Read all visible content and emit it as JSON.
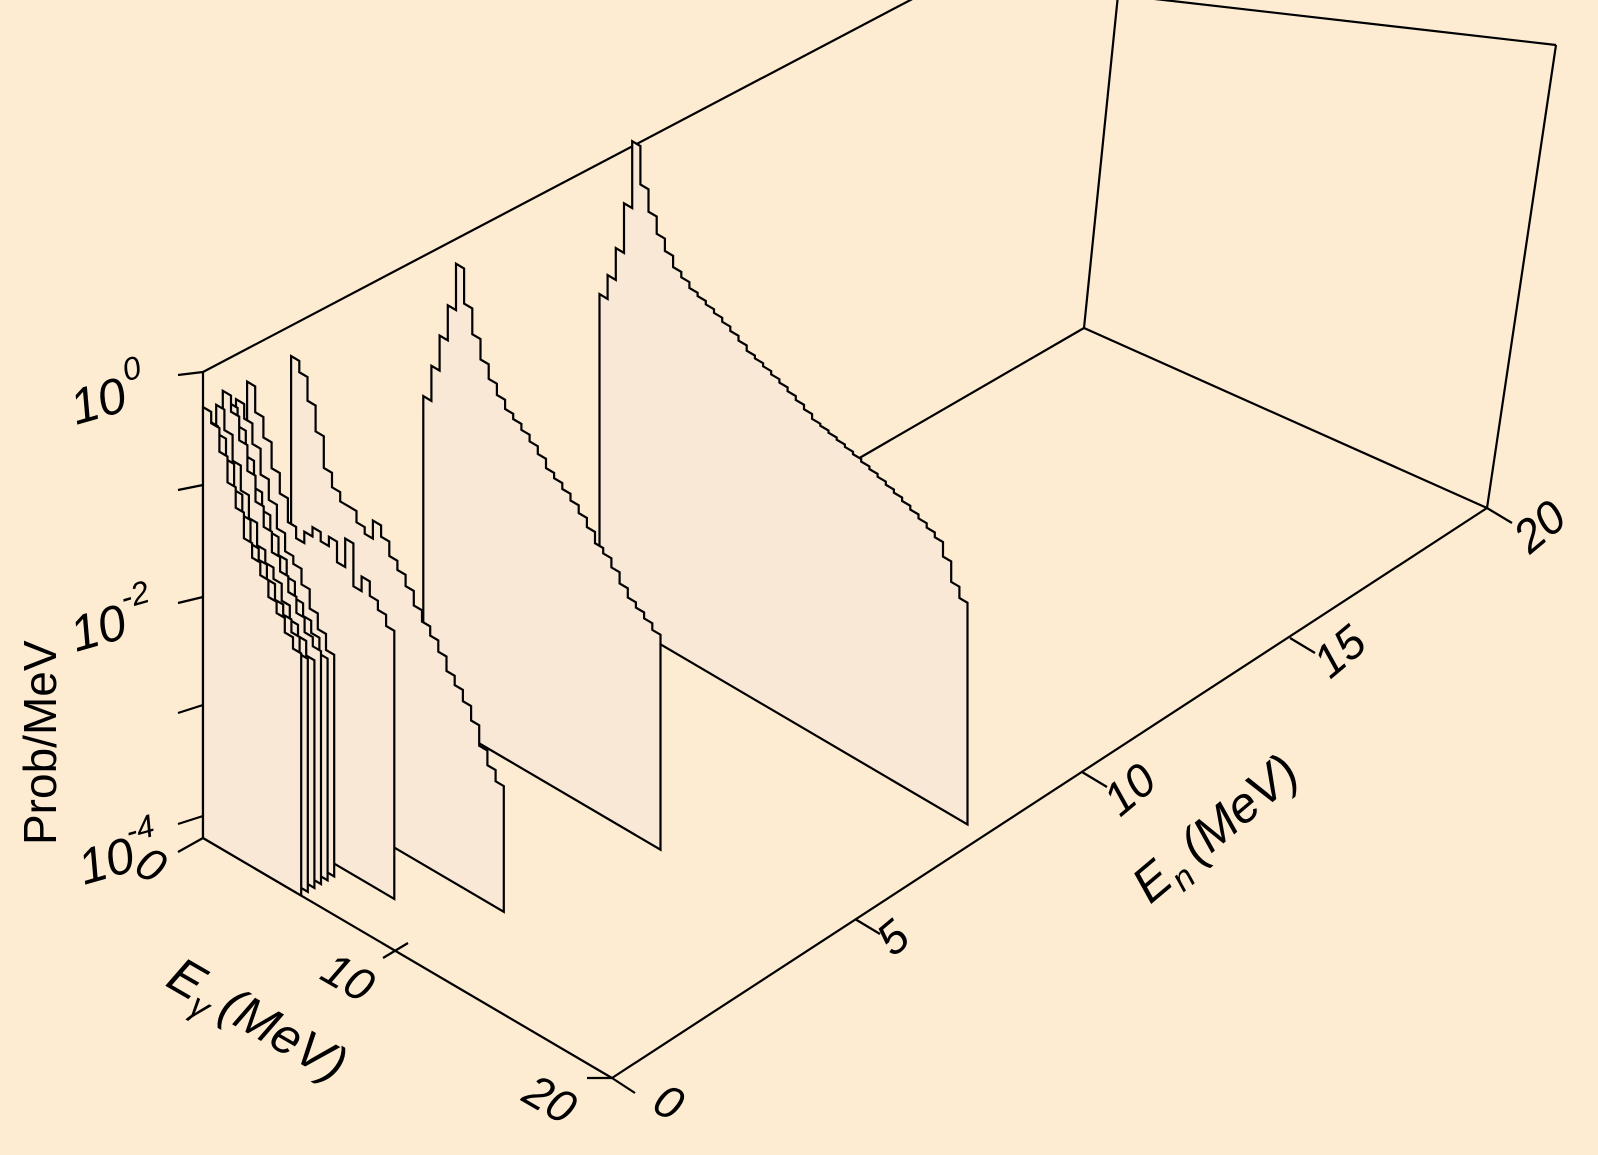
{
  "chart_data": {
    "type": "3d-step-histogram",
    "ylabel": "Prob/MeV",
    "xlabel_main": "E",
    "xlabel_sub": "γ",
    "xlabel_unit": "(MeV)",
    "zlabel_main": "E",
    "zlabel_sub": "n",
    "zlabel_unit": "(MeV)",
    "y_scale": "log",
    "ylim": [
      0.0001,
      1
    ],
    "xlim": [
      0,
      20
    ],
    "zlim": [
      0,
      20
    ],
    "ytick_labels": [
      {
        "base": "10",
        "exp": "0",
        "value": 1
      },
      {
        "base": "10",
        "exp": "-2",
        "value": 0.01
      },
      {
        "base": "10",
        "exp": "-4",
        "value": 0.0001
      }
    ],
    "xtick_labels": [
      "0",
      "10",
      "20"
    ],
    "ztick_labels": [
      "0",
      "5",
      "10",
      "15",
      "20"
    ],
    "series": [
      {
        "en": 0.0,
        "values": [
          0.5,
          0.4,
          0.25,
          0.15,
          0.1,
          0.06,
          0.045,
          0.035,
          0.025,
          0.02,
          0.015,
          0.012
        ]
      },
      {
        "en": 0.15,
        "values": [
          0.35,
          0.3,
          0.2,
          0.12,
          0.08,
          0.05,
          0.04,
          0.03,
          0.022,
          0.018,
          0.014,
          0.01
        ]
      },
      {
        "en": 0.3,
        "values": [
          0.45,
          0.3,
          0.18,
          0.11,
          0.07,
          0.045,
          0.035,
          0.028,
          0.02,
          0.015,
          0.012,
          0.009
        ]
      },
      {
        "en": 0.45,
        "values": [
          0.55,
          0.4,
          0.25,
          0.15,
          0.09,
          0.06,
          0.04,
          0.03,
          0.022,
          0.016,
          0.012,
          0.01
        ]
      },
      {
        "en": 0.6,
        "values": [
          0.4,
          0.28,
          0.17,
          0.1,
          0.07,
          0.05,
          0.035,
          0.025,
          0.018,
          0.014,
          0.011,
          0.008
        ]
      },
      {
        "en": 0.75,
        "values": [
          0.4,
          0.3,
          0.2,
          0.12,
          0.08,
          0.05,
          0.035,
          0.03,
          0.022,
          0.015,
          0.011,
          0.008
        ]
      },
      {
        "en": 1.0,
        "values": [
          0.5,
          0.3,
          0.2,
          0.12,
          0.08,
          0.05,
          0.04,
          0.05,
          0.06,
          0.05,
          0.06,
          0.04,
          0.07,
          0.03,
          0.04,
          0.03,
          0.025,
          0.02
        ]
      },
      {
        "en": 2.0,
        "values": [
          0.5,
          0.4,
          0.25,
          0.15,
          0.08,
          0.06,
          0.05,
          0.05,
          0.04,
          0.035,
          0.05,
          0.04,
          0.03,
          0.025,
          0.02,
          0.015,
          0.012,
          0.01,
          0.008,
          0.006,
          0.005,
          0.004,
          0.003,
          0.002,
          0.0015,
          0.0012
        ]
      },
      {
        "en": 5.0,
        "values": [
          0.05,
          0.1,
          0.2,
          0.4,
          1.0,
          0.5,
          0.3,
          0.2,
          0.15,
          0.12,
          0.1,
          0.09,
          0.08,
          0.07,
          0.06,
          0.05,
          0.045,
          0.04,
          0.035,
          0.03,
          0.025,
          0.02,
          0.018,
          0.015,
          0.012,
          0.01,
          0.009,
          0.008,
          0.007
        ]
      },
      {
        "en": 9.0,
        "values": [
          0.05,
          0.08,
          0.15,
          0.4,
          1.5,
          0.7,
          0.45,
          0.32,
          0.25,
          0.2,
          0.18,
          0.16,
          0.15,
          0.14,
          0.13,
          0.12,
          0.11,
          0.1,
          0.09,
          0.085,
          0.08,
          0.075,
          0.07,
          0.065,
          0.06,
          0.055,
          0.05,
          0.048,
          0.046,
          0.044,
          0.042,
          0.04,
          0.038,
          0.036,
          0.034,
          0.032,
          0.03,
          0.028,
          0.026,
          0.024,
          0.022,
          0.02,
          0.015,
          0.01,
          0.008
        ]
      }
    ]
  }
}
